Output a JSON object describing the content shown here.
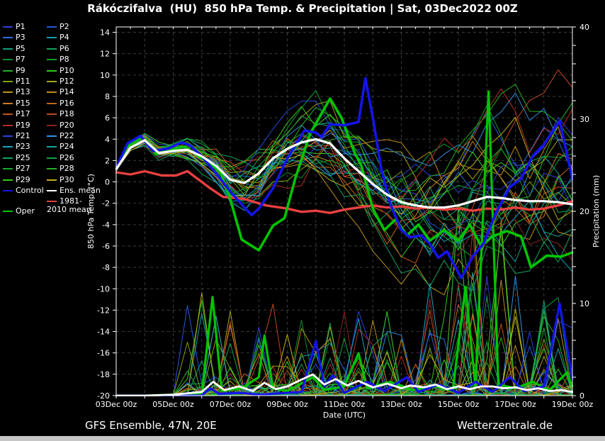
{
  "title": "Rákóczifalva  (HU)  850 hPa Temp. & Precipitation | Sat, 03Dec2022 00Z",
  "footer": {
    "left": "GFS Ensemble, 47N, 20E",
    "right": "Wetterzentrale.de"
  },
  "legend": {
    "col1": [
      {
        "label": "P1",
        "color": "#2b3fd6"
      },
      {
        "label": "P3",
        "color": "#2c6fdc"
      },
      {
        "label": "P5",
        "color": "#109f7d"
      },
      {
        "label": "P7",
        "color": "#0d8c2f"
      },
      {
        "label": "P9",
        "color": "#22b01f"
      },
      {
        "label": "P11",
        "color": "#7fa315"
      },
      {
        "label": "P13",
        "color": "#b8911a"
      },
      {
        "label": "P15",
        "color": "#cc7a1a"
      },
      {
        "label": "P17",
        "color": "#c2521d"
      },
      {
        "label": "P19",
        "color": "#b62b24"
      },
      {
        "label": "P21",
        "color": "#2746d8"
      },
      {
        "label": "P23",
        "color": "#1ba4c4"
      },
      {
        "label": "P25",
        "color": "#13a360"
      },
      {
        "label": "P27",
        "color": "#17a52c"
      },
      {
        "label": "P29",
        "color": "#39c81e"
      },
      {
        "label": "Control",
        "color": "#1414ea"
      }
    ],
    "col2": [
      {
        "label": "P2",
        "color": "#2557da"
      },
      {
        "label": "P4",
        "color": "#179fae"
      },
      {
        "label": "P6",
        "color": "#12a257"
      },
      {
        "label": "P8",
        "color": "#109f2a"
      },
      {
        "label": "P10",
        "color": "#33c81d"
      },
      {
        "label": "P12",
        "color": "#a6a413"
      },
      {
        "label": "P14",
        "color": "#c28c16"
      },
      {
        "label": "P16",
        "color": "#c0661a"
      },
      {
        "label": "P18",
        "color": "#bd4a22"
      },
      {
        "label": "P20",
        "color": "#8c2222"
      },
      {
        "label": "P22",
        "color": "#2f8fe0"
      },
      {
        "label": "P24",
        "color": "#14a39b"
      },
      {
        "label": "P26",
        "color": "#11a148"
      },
      {
        "label": "P28",
        "color": "#25b325"
      },
      {
        "label": "P30",
        "color": "#c0b015"
      },
      {
        "label": "Ens. mean",
        "color": "#ffffff"
      }
    ],
    "clim": {
      "label": "1981-2010 mean",
      "color": "#e84040"
    },
    "oper": {
      "label": "Oper",
      "color": "#00c400"
    }
  },
  "chart_data": {
    "type": "line",
    "title": "Rákóczifalva  (HU)  850 hPa Temp. & Precipitation | Sat, 03Dec2022 00Z",
    "xlabel": "Date (UTC)",
    "ylabel_left": "850 hPa Temp. (°C)",
    "ylabel_right": "Precipitation (mm)",
    "x_days": 16,
    "x_tick_labels": [
      "03Dec 00z",
      "05Dec 00z",
      "07Dec 00z",
      "09Dec 00z",
      "11Dec 00z",
      "13Dec 00z",
      "15Dec 00z",
      "17Dec 00z",
      "19Dec 00z"
    ],
    "temp_axis": {
      "min": -20,
      "max": 14.5,
      "tick_step": 2,
      "tick_labels": [
        14,
        12,
        10,
        8,
        6,
        4,
        2,
        0,
        -2,
        -4,
        -6,
        -8,
        -10,
        -12,
        -14,
        -16,
        -18,
        -20
      ]
    },
    "precip_axis": {
      "min": 0,
      "max": 40,
      "tick_labels": [
        0,
        10,
        20,
        30,
        40
      ],
      "minor_step": 2
    },
    "grid": {
      "color": "#3b3b3b",
      "dash": "4,4",
      "v_every_days": 1,
      "h_every_degC": 2
    },
    "series": [
      {
        "name": "1981-2010 mean",
        "color": "#e84040",
        "width": 3.4,
        "axis": "temp",
        "points": [
          [
            0,
            0.9
          ],
          [
            0.5,
            0.7
          ],
          [
            1,
            1.0
          ],
          [
            1.6,
            0.6
          ],
          [
            2.1,
            0.6
          ],
          [
            2.5,
            1.0
          ],
          [
            2.9,
            0.2
          ],
          [
            3.3,
            -0.6
          ],
          [
            3.75,
            -1.4
          ],
          [
            4.5,
            -1.6
          ],
          [
            5.25,
            -2.2
          ],
          [
            6,
            -2.5
          ],
          [
            6.5,
            -2.8
          ],
          [
            7,
            -2.7
          ],
          [
            7.5,
            -2.9
          ],
          [
            8,
            -2.6
          ],
          [
            8.5,
            -2.4
          ],
          [
            9,
            -2.2
          ],
          [
            9.5,
            -2.4
          ],
          [
            10,
            -2.3
          ],
          [
            10.5,
            -2.5
          ],
          [
            11,
            -2.4
          ],
          [
            11.5,
            -2.6
          ],
          [
            12,
            -2.5
          ],
          [
            12.5,
            -2.7
          ],
          [
            13,
            -2.5
          ],
          [
            13.5,
            -2.6
          ],
          [
            14,
            -2.4
          ],
          [
            14.5,
            -2.6
          ],
          [
            15,
            -2.5
          ],
          [
            15.5,
            -2.2
          ],
          [
            16,
            -1.8
          ]
        ]
      },
      {
        "name": "Oper temp",
        "color": "#00c400",
        "width": 3.6,
        "axis": "temp",
        "points": [
          [
            0,
            1.2
          ],
          [
            0.4,
            3.4
          ],
          [
            0.9,
            4.1
          ],
          [
            1.4,
            2.6
          ],
          [
            1.9,
            3.0
          ],
          [
            2.4,
            3.3
          ],
          [
            3,
            2.2
          ],
          [
            3.65,
            1.0
          ],
          [
            4,
            -1.6
          ],
          [
            4.4,
            -5.4
          ],
          [
            5,
            -6.4
          ],
          [
            5.5,
            -4.1
          ],
          [
            5.9,
            -3.4
          ],
          [
            6.3,
            0.5
          ],
          [
            6.8,
            4.5
          ],
          [
            7.5,
            7.8
          ],
          [
            7.9,
            6.0
          ],
          [
            8.35,
            2.8
          ],
          [
            8.6,
            1.5
          ],
          [
            9,
            -2.5
          ],
          [
            9.4,
            -4.5
          ],
          [
            9.8,
            -3.5
          ],
          [
            10.2,
            -5.0
          ],
          [
            10.6,
            -4.0
          ],
          [
            11,
            -5.5
          ],
          [
            11.5,
            -4.5
          ],
          [
            12,
            -5.5
          ],
          [
            12.4,
            -4.0
          ],
          [
            12.8,
            -6.0
          ],
          [
            13.2,
            -5.1
          ],
          [
            13.7,
            -4.6
          ],
          [
            14.2,
            -5.1
          ],
          [
            14.55,
            -8.0
          ],
          [
            15.1,
            -6.9
          ],
          [
            15.6,
            -7.0
          ],
          [
            16,
            -6.6
          ]
        ]
      },
      {
        "name": "Oper precip",
        "color": "#00c400",
        "width": 3.2,
        "axis": "precip",
        "points": [
          [
            0,
            0
          ],
          [
            1,
            0
          ],
          [
            2,
            0.1
          ],
          [
            3,
            0.2
          ],
          [
            3.38,
            10.7
          ],
          [
            3.7,
            0.5
          ],
          [
            4.4,
            0.8
          ],
          [
            5.0,
            2.0
          ],
          [
            5.2,
            6.5
          ],
          [
            5.5,
            0.8
          ],
          [
            6,
            0.5
          ],
          [
            6.9,
            2.0
          ],
          [
            7.3,
            0.6
          ],
          [
            8.0,
            1.0
          ],
          [
            8.5,
            4.6
          ],
          [
            8.8,
            0.8
          ],
          [
            9.6,
            1.5
          ],
          [
            10.4,
            0.6
          ],
          [
            11.2,
            1.0
          ],
          [
            11.8,
            0.5
          ],
          [
            12.25,
            11.8
          ],
          [
            12.6,
            1.0
          ],
          [
            13.06,
            33.0
          ],
          [
            13.4,
            1.2
          ],
          [
            14,
            0.8
          ],
          [
            14.6,
            1.5
          ],
          [
            15.2,
            0.6
          ],
          [
            15.8,
            2.5
          ],
          [
            16,
            1.0
          ]
        ]
      },
      {
        "name": "Control temp",
        "color": "#1414ea",
        "width": 3.6,
        "axis": "temp",
        "points": [
          [
            0,
            1.3
          ],
          [
            0.4,
            3.6
          ],
          [
            0.85,
            4.3
          ],
          [
            1.3,
            2.9
          ],
          [
            1.8,
            3.1
          ],
          [
            2.3,
            3.7
          ],
          [
            2.6,
            3.4
          ],
          [
            3,
            2.4
          ],
          [
            3.5,
            0.8
          ],
          [
            4,
            -0.9
          ],
          [
            4.5,
            -2.4
          ],
          [
            4.75,
            -3.1
          ],
          [
            5,
            -2.5
          ],
          [
            5.5,
            -0.6
          ],
          [
            6,
            2.2
          ],
          [
            6.6,
            4.8
          ],
          [
            7,
            4.6
          ],
          [
            7.2,
            4.2
          ],
          [
            7.5,
            5.4
          ],
          [
            8,
            5.3
          ],
          [
            8.5,
            5.6
          ],
          [
            8.74,
            9.7
          ],
          [
            9,
            6.0
          ],
          [
            9.3,
            1.2
          ],
          [
            9.6,
            -2.0
          ],
          [
            10,
            -4.5
          ],
          [
            10.3,
            -5.2
          ],
          [
            10.7,
            -5.0
          ],
          [
            11,
            -5.8
          ],
          [
            11.3,
            -7.1
          ],
          [
            11.6,
            -6.5
          ],
          [
            12.1,
            -9.0
          ],
          [
            12.5,
            -7.0
          ],
          [
            12.9,
            -5.7
          ],
          [
            13.3,
            -3.0
          ],
          [
            13.8,
            -0.5
          ],
          [
            14.2,
            0.3
          ],
          [
            14.6,
            2.4
          ],
          [
            15,
            3.5
          ],
          [
            15.55,
            5.7
          ],
          [
            16,
            0.3
          ]
        ]
      },
      {
        "name": "Control precip",
        "color": "#1414ea",
        "width": 3.2,
        "axis": "precip",
        "points": [
          [
            0,
            0
          ],
          [
            1,
            0
          ],
          [
            2,
            0
          ],
          [
            3,
            0
          ],
          [
            3.3,
            0.8
          ],
          [
            3.6,
            0.2
          ],
          [
            4.4,
            0.3
          ],
          [
            5,
            0.1
          ],
          [
            6.5,
            0.4
          ],
          [
            7.0,
            5.9
          ],
          [
            7.3,
            1.0
          ],
          [
            7.6,
            2.2
          ],
          [
            8,
            0.3
          ],
          [
            8.8,
            1.5
          ],
          [
            9.4,
            0.5
          ],
          [
            10.2,
            2.0
          ],
          [
            10.6,
            0.4
          ],
          [
            11.3,
            1.2
          ],
          [
            12,
            0.3
          ],
          [
            12.6,
            1.5
          ],
          [
            13.2,
            0.4
          ],
          [
            13.8,
            2.0
          ],
          [
            14.3,
            0.5
          ],
          [
            15,
            1.0
          ],
          [
            15.55,
            10.0
          ],
          [
            16,
            1.8
          ]
        ]
      },
      {
        "name": "Ens. mean temp",
        "color": "#ffffff",
        "width": 3.2,
        "axis": "temp",
        "points": [
          [
            0,
            1.2
          ],
          [
            0.5,
            3.2
          ],
          [
            1,
            3.9
          ],
          [
            1.5,
            2.7
          ],
          [
            2,
            2.9
          ],
          [
            2.5,
            3.0
          ],
          [
            3,
            2.4
          ],
          [
            3.5,
            1.5
          ],
          [
            4,
            0.2
          ],
          [
            4.5,
            -0.1
          ],
          [
            5,
            0.8
          ],
          [
            5.5,
            2.2
          ],
          [
            6,
            3.1
          ],
          [
            6.5,
            3.7
          ],
          [
            7,
            4.0
          ],
          [
            7.5,
            3.6
          ],
          [
            8,
            2.2
          ],
          [
            8.5,
            1.0
          ],
          [
            9,
            -0.2
          ],
          [
            9.5,
            -1.2
          ],
          [
            10,
            -1.9
          ],
          [
            10.5,
            -2.2
          ],
          [
            11,
            -2.4
          ],
          [
            11.5,
            -2.4
          ],
          [
            12,
            -2.2
          ],
          [
            12.5,
            -1.8
          ],
          [
            13,
            -1.4
          ],
          [
            13.5,
            -1.5
          ],
          [
            14,
            -1.7
          ],
          [
            14.5,
            -1.8
          ],
          [
            15,
            -1.8
          ],
          [
            15.5,
            -1.9
          ],
          [
            16,
            -2.1
          ]
        ]
      },
      {
        "name": "Ens. mean precip",
        "color": "#ffffff",
        "width": 2.8,
        "axis": "precip",
        "points": [
          [
            0,
            0
          ],
          [
            1,
            0
          ],
          [
            2,
            0.1
          ],
          [
            3,
            0.4
          ],
          [
            3.4,
            1.5
          ],
          [
            3.8,
            0.6
          ],
          [
            4.3,
            1.0
          ],
          [
            4.8,
            0.5
          ],
          [
            5.2,
            1.4
          ],
          [
            5.6,
            0.7
          ],
          [
            6,
            1.0
          ],
          [
            6.4,
            1.6
          ],
          [
            6.9,
            2.3
          ],
          [
            7.3,
            1.2
          ],
          [
            7.7,
            1.8
          ],
          [
            8.1,
            1.1
          ],
          [
            8.5,
            1.6
          ],
          [
            9,
            0.9
          ],
          [
            9.5,
            1.3
          ],
          [
            10,
            0.8
          ],
          [
            10.3,
            1.1
          ],
          [
            10.8,
            0.9
          ],
          [
            11.2,
            1.2
          ],
          [
            11.6,
            0.7
          ],
          [
            12,
            1.0
          ],
          [
            12.4,
            0.7
          ],
          [
            12.8,
            1.0
          ],
          [
            13.2,
            1.0
          ],
          [
            13.6,
            0.8
          ],
          [
            14,
            0.9
          ],
          [
            14.4,
            0.6
          ],
          [
            14.8,
            0.8
          ],
          [
            15.2,
            0.5
          ],
          [
            15.6,
            0.6
          ],
          [
            16,
            0.4
          ]
        ]
      }
    ],
    "members": {
      "count": 30,
      "seed": 11,
      "colors": [
        "#2b3fd6",
        "#2557da",
        "#2c6fdc",
        "#179fae",
        "#109f7d",
        "#12a257",
        "#0d8c2f",
        "#109f2a",
        "#22b01f",
        "#33c81d",
        "#7fa315",
        "#a6a413",
        "#b8911a",
        "#c28c16",
        "#cc7a1a",
        "#c0661a",
        "#c2521d",
        "#bd4a22",
        "#b62b24",
        "#8c2222",
        "#2746d8",
        "#2f8fe0",
        "#1ba4c4",
        "#14a39b",
        "#13a360",
        "#11a148",
        "#17a52c",
        "#25b325",
        "#39c81e",
        "#c0b015"
      ]
    }
  }
}
